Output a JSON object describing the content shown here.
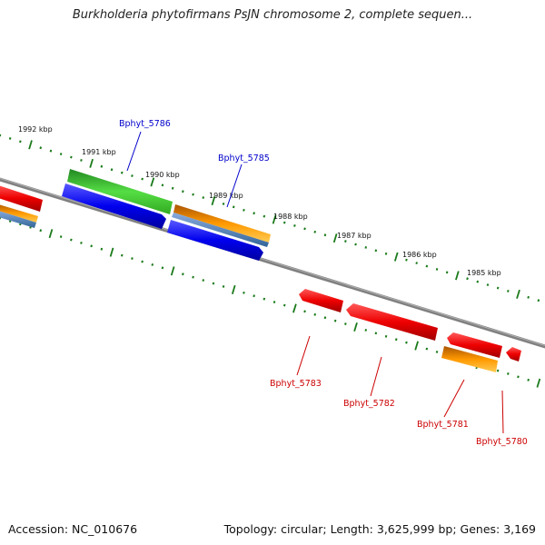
{
  "title": "Burkholderia phytofirmans PsJN chromosome 2, complete sequen...",
  "footer": {
    "accession": "Accession: NC_010676",
    "topology": "Topology: circular; Length: 3,625,999 bp; Genes: 3,169"
  },
  "colors": {
    "backbone": "#7a7a7a",
    "tick": "#1a7a1a",
    "forward_label": "#0000cc",
    "reverse_label": "#cc0000",
    "cds_red": "#ee0000",
    "cds_blue": "#0000ee",
    "cds_green": "#44cc33",
    "cds_orange": "#ff9900",
    "cds_steel": "#5588bb"
  },
  "kbp_labels": [
    "1992 kbp",
    "1991 kbp",
    "1990 kbp",
    "1989 kbp",
    "1988 kbp",
    "1987 kbp",
    "1986 kbp",
    "1985 kbp"
  ],
  "forward_genes": [
    "Bphyt_5786",
    "Bphyt_5785"
  ],
  "reverse_genes": [
    "Bphyt_5783",
    "Bphyt_5782",
    "Bphyt_5781",
    "Bphyt_5780"
  ]
}
